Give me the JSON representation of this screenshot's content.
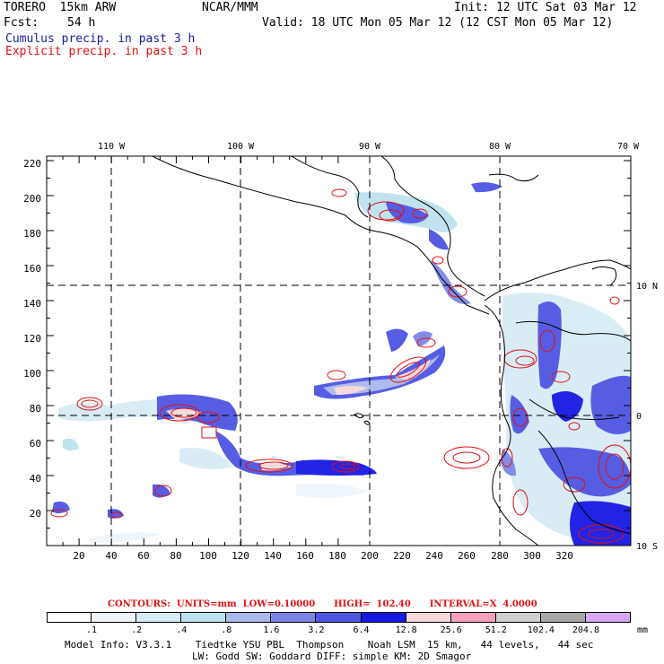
{
  "header": {
    "model_name": "TORERO  15km ARW",
    "org": "NCAR/MMM",
    "init": "Init: 12 UTC Sat 03 Mar 12",
    "fcst_label": "Fcst:",
    "fcst_hours": "54 h",
    "valid": "Valid: 18 UTC Mon 05 Mar 12 (12 CST Mon 05 Mar 12)",
    "field1": "Cumulus precip. in past 3 h",
    "field2": "Explicit precip. in past 3 h"
  },
  "colors": {
    "field1_text": "#1a1aa0",
    "field2_text": "#e01010",
    "contour": "#e01010",
    "land_outline": "#000000",
    "grid_dash": "#000000"
  },
  "map": {
    "x_ticks": [
      "20",
      "40",
      "60",
      "80",
      "100",
      "120",
      "140",
      "160",
      "180",
      "200",
      "220",
      "240",
      "260",
      "280",
      "300",
      "320"
    ],
    "y_ticks": [
      "20",
      "40",
      "60",
      "80",
      "100",
      "120",
      "140",
      "160",
      "180",
      "200",
      "220"
    ],
    "lon_labels": [
      "110 W",
      "100 W",
      "90 W",
      "80 W",
      "70 W"
    ],
    "lat_labels": [
      "10 N",
      "0",
      "10 S"
    ]
  },
  "contours_line": {
    "prefix": "CONTOURS:  UNITS=mm  LOW=",
    "low": "0.10000",
    "high_prefix": "HIGH=",
    "high": "102.40",
    "interval_prefix": "INTERVAL=X",
    "interval": "4.0000"
  },
  "legend": {
    "colors": [
      "#ffffff",
      "#eef6fb",
      "#d7ecf6",
      "#bde2ef",
      "#aab8ec",
      "#7d86e6",
      "#4e55e2",
      "#1818e4",
      "#f5d8da",
      "#f6a0c0",
      "#d0d0d0",
      "#a8a8a8",
      "#d8a8f5"
    ],
    "labels": [
      ".1",
      ".2",
      ".4",
      ".8",
      "1.6",
      "3.2",
      "6.4",
      "12.8",
      "25.6",
      "51.2",
      "102.4",
      "204.8"
    ],
    "unit": "mm"
  },
  "footer": {
    "line1": "Model Info: V3.3.1    Tiedtke YSU PBL  Thompson    Noah LSM  15 km,   44 levels,   44 sec",
    "line2": "LW: Godd SW: Goddard DIFF: simple KM: 2D Smagor"
  }
}
